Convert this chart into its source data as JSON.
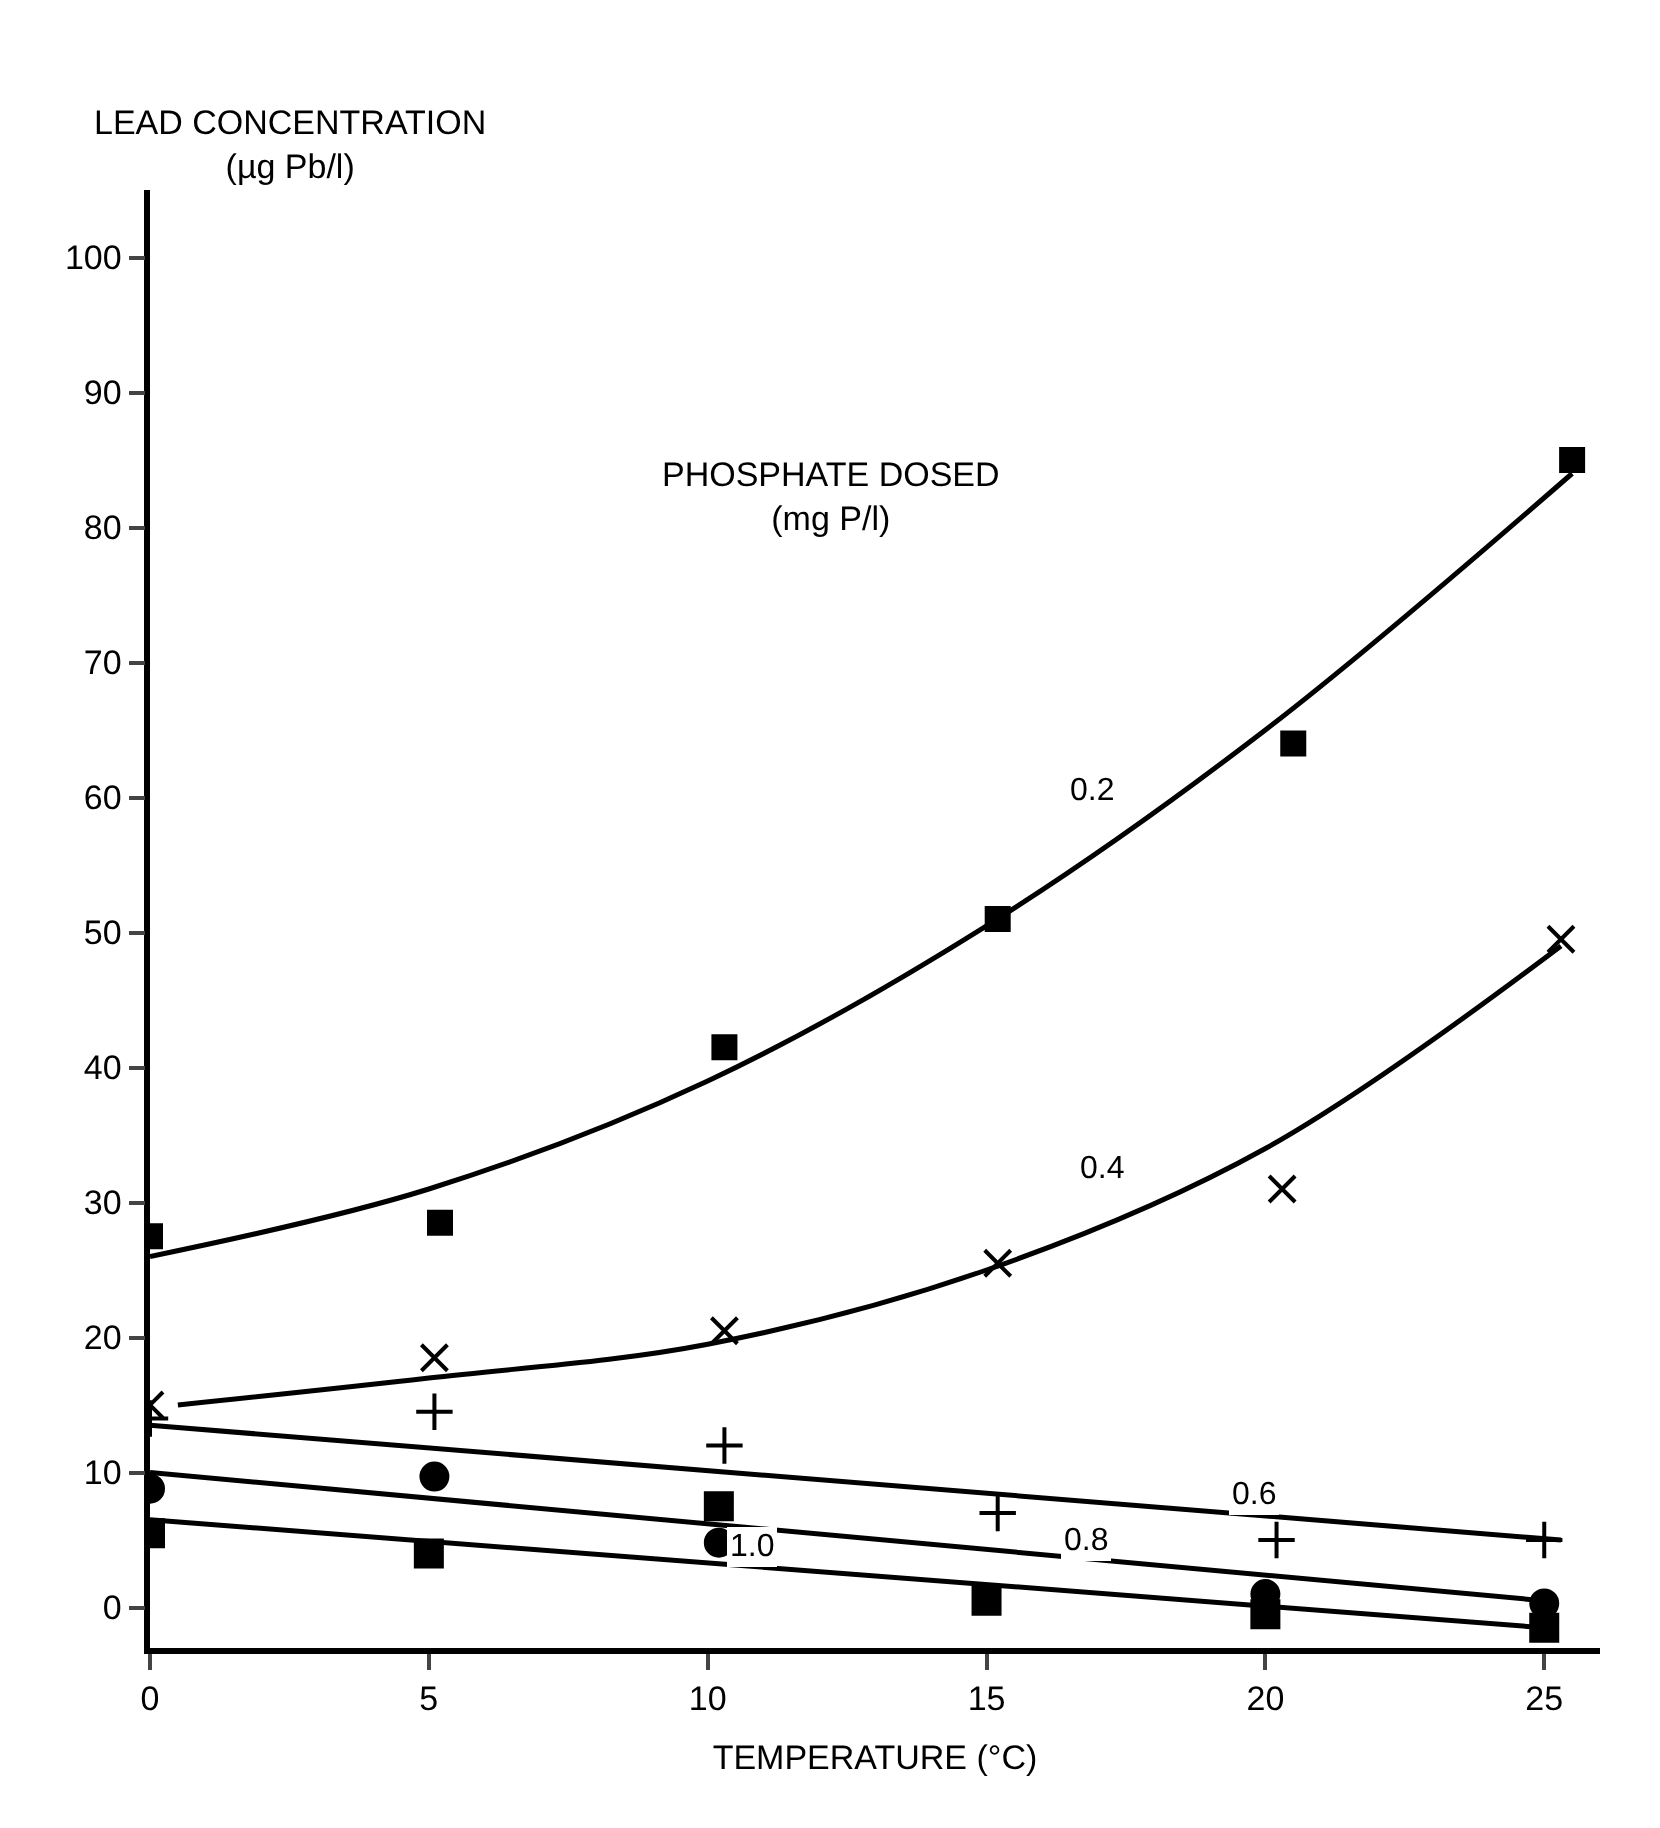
{
  "chart_data": {
    "type": "scatter",
    "ylabel": "LEAD CONCENTRATION\n(µg Pb/l)",
    "xlabel": "TEMPERATURE (°C)",
    "annotations": [
      "PHOSPHATE DOSED\n(mg P/l)"
    ],
    "xlim": [
      0,
      26
    ],
    "ylim": [
      -3,
      105
    ],
    "xticks": [
      0,
      5,
      10,
      15,
      20,
      25
    ],
    "yticks": [
      0,
      10,
      20,
      30,
      40,
      50,
      60,
      70,
      80,
      90,
      100
    ],
    "legend": false,
    "series": [
      {
        "marker": "square",
        "color": "#000000",
        "x": [
          0,
          5.2,
          10.3,
          15.2,
          20.5,
          25.5
        ],
        "values": [
          27.5,
          28.5,
          41.5,
          51,
          64,
          85
        ]
      },
      {
        "marker": "x",
        "color": "#000000",
        "x": [
          0,
          5.1,
          10.3,
          15.2,
          20.3,
          25.3
        ],
        "values": [
          15,
          18.5,
          20.5,
          25.5,
          31,
          49.5
        ]
      },
      {
        "marker": "cross",
        "color": "#000000",
        "x": [
          0,
          5.1,
          10.3,
          15.2,
          20.2,
          25
        ],
        "values": [
          14,
          14.5,
          12,
          7,
          5,
          5
        ]
      },
      {
        "marker": "circle",
        "color": "#000000",
        "x": [
          0,
          5.1,
          10.2,
          20,
          25
        ],
        "values": [
          8.8,
          9.7,
          4.8,
          1,
          0.3
        ]
      },
      {
        "marker": "square",
        "color": "#000000",
        "x": [
          0,
          5,
          10.2,
          15,
          20,
          25
        ],
        "values": [
          5.5,
          4,
          7.5,
          0.5,
          -0.5,
          -1.5
        ]
      },
      {
        "type": "line",
        "name": "0.2",
        "color": "#000000",
        "x": [
          0,
          5,
          10,
          15,
          20,
          25.5
        ],
        "values": [
          26,
          31,
          39,
          50.5,
          65,
          84
        ]
      },
      {
        "type": "line",
        "name": "0.4",
        "color": "#000000",
        "x": [
          0.5,
          5,
          10,
          15,
          20,
          25.3
        ],
        "values": [
          15,
          17,
          19.5,
          25,
          34,
          49
        ]
      },
      {
        "type": "line",
        "name": "0.6",
        "color": "#000000",
        "x": [
          0,
          25.3
        ],
        "values": [
          13.5,
          5
        ]
      },
      {
        "type": "line",
        "name": "0.8",
        "color": "#000000",
        "x": [
          0,
          25
        ],
        "values": [
          10,
          0.5
        ]
      },
      {
        "type": "line",
        "name": "1.0",
        "color": "#000000",
        "x": [
          0,
          25
        ],
        "values": [
          6.5,
          -1.5
        ]
      }
    ]
  }
}
